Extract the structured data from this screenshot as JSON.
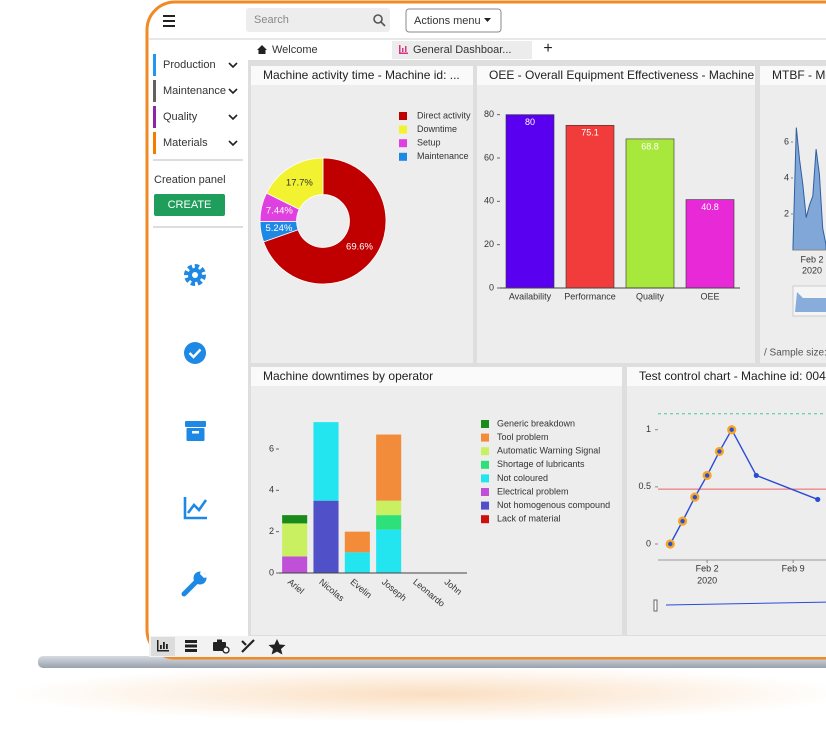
{
  "topbar": {
    "search": "Search",
    "actions_menu": "Actions menu"
  },
  "tabs": [
    "Welcome",
    "General Dashboar...",
    "+"
  ],
  "sidebar": {
    "menu": [
      {
        "label": "Production",
        "color": "#2196f3"
      },
      {
        "label": "Maintenance",
        "color": "#616161"
      },
      {
        "label": "Quality",
        "color": "#8e24aa"
      },
      {
        "label": "Materials",
        "color": "#f57c00"
      }
    ],
    "creation_panel": "Creation panel",
    "create": "CREATE"
  },
  "widgets": [
    {
      "title": "Machine activity time - Machine id: ...",
      "chart": {
        "type": "pie",
        "categories": [
          "Direct activity",
          "Downtime",
          "Setup",
          "Maintenance"
        ],
        "values": [
          69.6,
          17.7,
          7.44,
          5.24
        ],
        "value_labels": [
          "69.6%",
          "17.7%",
          "7.44%",
          "5.24%"
        ],
        "colors": [
          "#c00000",
          "#f2f230",
          "#e040e0",
          "#1e88e5"
        ],
        "hole": 0.42
      }
    },
    {
      "title": "OEE - Overall Equipment Effectiveness - Machine ...",
      "chart": {
        "type": "bar",
        "categories": [
          "Availability",
          "Performance",
          "Quality",
          "OEE"
        ],
        "values": [
          80,
          75.1,
          68.8,
          40.8
        ],
        "colors": [
          "#5a00f0",
          "#f23c3c",
          "#a8e83c",
          "#e829d8"
        ],
        "ylim": [
          0,
          84
        ],
        "yticks": [
          0,
          20,
          40,
          60,
          80
        ]
      }
    },
    {
      "title": "MTBF - Mo",
      "footer": "/ Sample size:",
      "chart": {
        "type": "area",
        "values": [
          0.2,
          6.8,
          5.0,
          3.6,
          1.8,
          2.5,
          3.0,
          5.6,
          4.2,
          1.2,
          0.3
        ],
        "color": "#5b8fd0",
        "ylim": [
          0,
          7.5
        ],
        "yticks": [
          2,
          4,
          6
        ],
        "xtick_label": "Feb 2",
        "xtick_year": "2020"
      }
    },
    {
      "title": "Machine downtimes by operator",
      "chart": {
        "type": "stacked_bar",
        "categories": [
          "Ariel",
          "Nicolas",
          "Evelin",
          "Joseph",
          "Leonardo",
          "John"
        ],
        "series": [
          {
            "name": "Generic breakdown",
            "color": "#1a8a1a",
            "values": [
              0.4,
              0,
              0,
              0,
              0,
              0
            ]
          },
          {
            "name": "Tool problem",
            "color": "#f28c3a",
            "values": [
              0,
              0,
              1,
              3.2,
              0,
              0
            ]
          },
          {
            "name": "Automatic Warning Signal",
            "color": "#c8f060",
            "values": [
              1.6,
              0,
              0,
              0.7,
              0,
              0
            ]
          },
          {
            "name": "Shortage of lubricants",
            "color": "#2ee07a",
            "values": [
              0,
              0,
              0,
              0.7,
              0,
              0
            ]
          },
          {
            "name": "Not coloured",
            "color": "#22e5f0",
            "values": [
              0,
              3.8,
              1,
              2.1,
              0,
              0
            ]
          },
          {
            "name": "Electrical problem",
            "color": "#c050d8",
            "values": [
              0.8,
              0,
              0,
              0,
              0,
              0
            ]
          },
          {
            "name": "Not homogenous compound",
            "color": "#5050c8",
            "values": [
              0,
              3.5,
              0,
              0,
              0,
              0
            ]
          },
          {
            "name": "Lack of material",
            "color": "#cc1010",
            "values": [
              0,
              0,
              0,
              0,
              0,
              0
            ]
          }
        ],
        "ylim": [
          0,
          7.5
        ],
        "yticks": [
          0,
          2,
          4,
          6
        ]
      }
    },
    {
      "title": "Test control chart - Machine id: 004",
      "chart": {
        "type": "control",
        "x": [
          "2020-01-30",
          "2020-01-31",
          "2020-02-01",
          "2020-02-02",
          "2020-02-03",
          "2020-02-04",
          "2020-02-06",
          "2020-02-11"
        ],
        "values": [
          0,
          0.2,
          0.41,
          0.6,
          0.81,
          1.0,
          0.6,
          0.39
        ],
        "highlighted": [
          true,
          true,
          true,
          true,
          true,
          true,
          false,
          false
        ],
        "color": "#2a4bd7",
        "highlight_color": "#f5a623",
        "ucl": 1.14,
        "ucl_color": "#3ecf8e",
        "center_line": 0.48,
        "center_color": "#f06060",
        "xlim": [
          "2020-01-29",
          "2020-02-12"
        ],
        "xticks": [
          {
            "value": "2020-02-02",
            "label": "Feb 2",
            "sublabel": "2020"
          },
          {
            "value": "2020-02-09",
            "label": "Feb 9"
          }
        ],
        "ylim": [
          -0.14,
          1.26
        ],
        "yticks": [
          0,
          0.5,
          1
        ]
      }
    }
  ]
}
